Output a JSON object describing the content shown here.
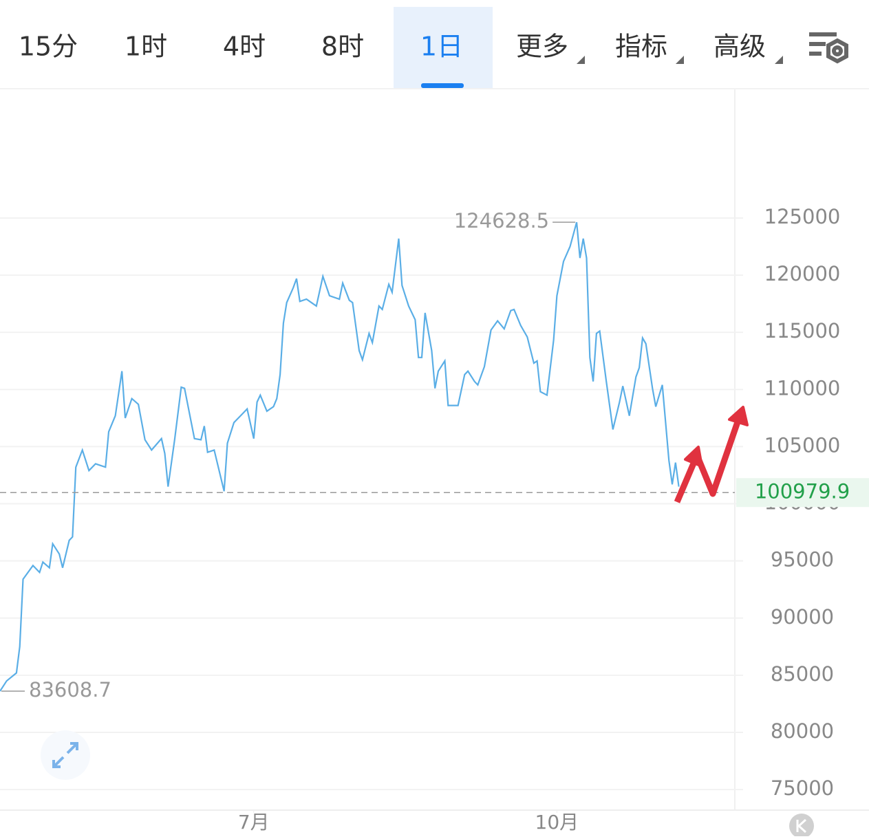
{
  "toolbar": {
    "tabs": [
      "15分",
      "1时",
      "4时",
      "8时",
      "1日",
      "更多",
      "指标",
      "高级"
    ],
    "active": 4
  },
  "chart_data": {
    "type": "line",
    "color": "#5aaee6",
    "x": [
      0,
      2,
      5,
      6,
      7,
      10,
      12,
      13,
      15,
      16,
      18,
      19,
      21,
      22,
      23,
      25,
      27,
      29,
      32,
      33,
      35,
      37,
      38,
      40,
      42,
      44,
      46,
      49,
      50,
      51,
      53,
      55,
      56,
      59,
      61,
      62,
      63,
      65,
      68,
      69,
      71,
      73,
      75,
      77,
      78,
      79,
      81,
      83,
      84,
      85,
      86,
      87,
      89,
      90,
      91,
      93,
      95,
      96,
      98,
      100,
      103,
      104,
      106,
      107,
      108,
      109,
      110,
      112,
      113,
      115,
      116,
      118,
      119,
      121,
      122,
      124,
      126,
      127,
      128,
      129,
      131,
      132,
      133,
      135,
      136,
      139,
      141,
      142,
      144,
      145,
      147,
      149,
      151,
      153,
      155,
      156,
      158,
      160,
      162,
      163,
      164,
      166,
      168,
      169,
      171,
      173,
      175,
      176,
      177,
      178,
      179,
      180,
      181,
      182,
      184,
      186,
      188,
      189,
      191,
      193,
      194,
      195,
      196,
      198,
      199,
      201,
      203,
      204,
      205,
      206
    ],
    "values": [
      83608.7,
      84500,
      85200,
      87500,
      93400,
      94600,
      94000,
      94900,
      94400,
      96500,
      95600,
      94400,
      96800,
      97100,
      103200,
      104700,
      102900,
      103500,
      103200,
      106300,
      107700,
      111600,
      107500,
      109200,
      108700,
      105600,
      104700,
      105700,
      104400,
      101500,
      105600,
      110200,
      110100,
      105700,
      105600,
      106800,
      104500,
      104700,
      101100,
      105300,
      107100,
      107700,
      108300,
      105700,
      108900,
      109500,
      108100,
      108500,
      109200,
      111300,
      115800,
      117600,
      118900,
      119700,
      117700,
      117900,
      117500,
      117300,
      119900,
      118200,
      117900,
      119300,
      117800,
      117600,
      115500,
      113400,
      112600,
      114900,
      114100,
      117300,
      117000,
      119200,
      118500,
      123200,
      119100,
      117300,
      116100,
      112800,
      112800,
      116700,
      113400,
      110100,
      111600,
      112500,
      108600,
      108600,
      111300,
      111600,
      110700,
      110400,
      112000,
      115200,
      116000,
      115300,
      116900,
      117000,
      115600,
      114600,
      112300,
      112500,
      109800,
      109500,
      114300,
      118200,
      121200,
      122500,
      124628.5,
      121500,
      123200,
      121500,
      112800,
      110700,
      114900,
      115100,
      110700,
      106500,
      108900,
      110300,
      107700,
      111100,
      111900,
      114500,
      114000,
      110100,
      108500,
      110400,
      103800,
      101700,
      103600,
      101500
    ],
    "xlim": [
      0,
      223
    ],
    "xticks": [
      {
        "value": 77,
        "label": "7月"
      },
      {
        "value": 169,
        "label": "10月"
      }
    ],
    "ylim": [
      73200,
      136250
    ],
    "yticks": [
      75000,
      80000,
      85000,
      90000,
      95000,
      100000,
      105000,
      110000,
      115000,
      120000,
      125000
    ],
    "grid": true,
    "max_point": {
      "x": 175,
      "value": 124628.5
    },
    "min_point": {
      "x": 0,
      "value": 83608.7
    },
    "last_price": 100979.9
  }
}
